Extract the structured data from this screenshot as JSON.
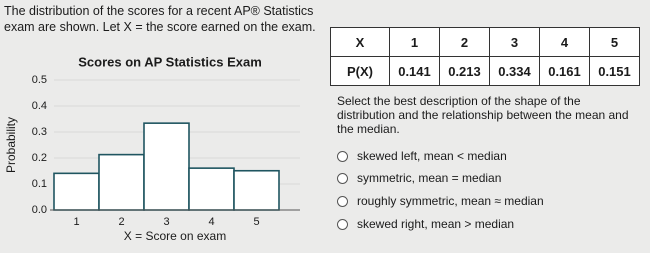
{
  "intro": "The distribution of the scores for a recent AP® Statistics exam are shown. Let X = the score earned on the exam.",
  "chart_data": {
    "type": "bar",
    "title": "Scores on AP Statistics Exam",
    "x_label": "X = Score on exam",
    "y_label": "Probability",
    "categories": [
      "1",
      "2",
      "3",
      "4",
      "5"
    ],
    "values": [
      0.141,
      0.213,
      0.334,
      0.161,
      0.151
    ],
    "color": "#ffffff",
    "edgecolor": "#1f5560",
    "ylim": [
      0,
      0.5
    ],
    "yticks": [
      {
        "value": 0,
        "label": "0.0"
      },
      0.1,
      0.2,
      0.3,
      0.4,
      0.5
    ],
    "grid": true
  },
  "table": {
    "rows": [
      [
        "X",
        "1",
        "2",
        "3",
        "4",
        "5"
      ],
      [
        "P(X)",
        "0.141",
        "0.213",
        "0.334",
        "0.161",
        "0.151"
      ]
    ]
  },
  "question": "Select the best description of the shape of the distribution and the relationship between the mean and the median.",
  "options": [
    "skewed left, mean < median",
    "symmetric, mean = median",
    "roughly symmetric, mean ≈ median",
    "skewed right, mean > median"
  ]
}
